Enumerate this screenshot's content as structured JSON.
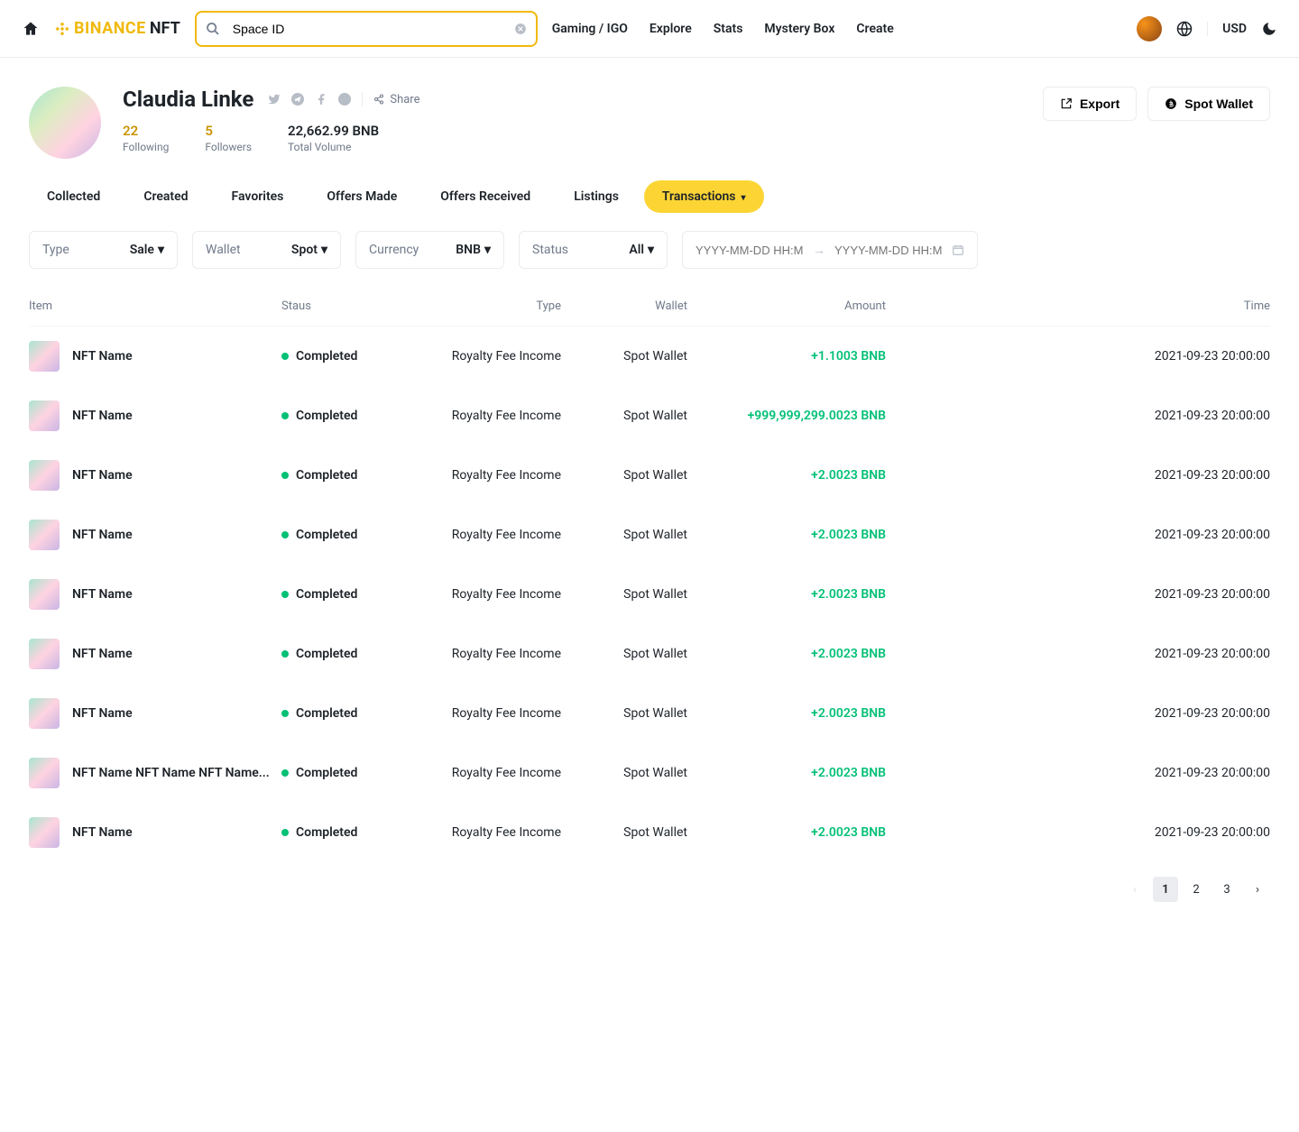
{
  "header": {
    "logo_binance": "BINANCE",
    "logo_nft": "NFT",
    "search_value": "Space ID",
    "nav": [
      "Gaming / IGO",
      "Explore",
      "Stats",
      "Mystery Box",
      "Create"
    ],
    "currency": "USD"
  },
  "profile": {
    "name": "Claudia Linke",
    "share_label": "Share",
    "stats": [
      {
        "value": "22",
        "label": "Following",
        "gold": true
      },
      {
        "value": "5",
        "label": "Followers",
        "gold": true
      },
      {
        "value": "22,662.99 BNB",
        "label": "Total Volume",
        "gold": false
      }
    ],
    "export_label": "Export",
    "spot_wallet_label": "Spot Wallet"
  },
  "tabs": [
    "Collected",
    "Created",
    "Favorites",
    "Offers Made",
    "Offers Received",
    "Listings",
    "Transactions"
  ],
  "active_tab": "Transactions",
  "filters": {
    "type": {
      "label": "Type",
      "value": "Sale"
    },
    "wallet": {
      "label": "Wallet",
      "value": "Spot"
    },
    "currency": {
      "label": "Currency",
      "value": "BNB"
    },
    "status": {
      "label": "Status",
      "value": "All"
    },
    "date_placeholder": "YYYY-MM-DD HH:MM"
  },
  "table": {
    "columns": [
      "Item",
      "Staus",
      "Type",
      "Wallet",
      "Amount",
      "Time"
    ],
    "rows": [
      {
        "item": "NFT Name",
        "status": "Completed",
        "type": "Royalty Fee Income",
        "wallet": "Spot Wallet",
        "amount": "+1.1003 BNB",
        "time": "2021-09-23 20:00:00"
      },
      {
        "item": "NFT Name",
        "status": "Completed",
        "type": "Royalty Fee Income",
        "wallet": "Spot Wallet",
        "amount": "+999,999,299.0023 BNB",
        "time": "2021-09-23 20:00:00"
      },
      {
        "item": "NFT Name",
        "status": "Completed",
        "type": "Royalty Fee Income",
        "wallet": "Spot Wallet",
        "amount": "+2.0023 BNB",
        "time": "2021-09-23 20:00:00"
      },
      {
        "item": "NFT Name",
        "status": "Completed",
        "type": "Royalty Fee Income",
        "wallet": "Spot Wallet",
        "amount": "+2.0023 BNB",
        "time": "2021-09-23 20:00:00"
      },
      {
        "item": "NFT Name",
        "status": "Completed",
        "type": "Royalty Fee Income",
        "wallet": "Spot Wallet",
        "amount": "+2.0023 BNB",
        "time": "2021-09-23 20:00:00"
      },
      {
        "item": "NFT Name",
        "status": "Completed",
        "type": "Royalty Fee Income",
        "wallet": "Spot Wallet",
        "amount": "+2.0023 BNB",
        "time": "2021-09-23 20:00:00"
      },
      {
        "item": "NFT Name",
        "status": "Completed",
        "type": "Royalty Fee Income",
        "wallet": "Spot Wallet",
        "amount": "+2.0023 BNB",
        "time": "2021-09-23 20:00:00"
      },
      {
        "item": "NFT Name NFT Name NFT Name...",
        "status": "Completed",
        "type": "Royalty Fee Income",
        "wallet": "Spot Wallet",
        "amount": "+2.0023 BNB",
        "time": "2021-09-23 20:00:00"
      },
      {
        "item": "NFT Name",
        "status": "Completed",
        "type": "Royalty Fee Income",
        "wallet": "Spot Wallet",
        "amount": "+2.0023 BNB",
        "time": "2021-09-23 20:00:00"
      }
    ]
  },
  "pagination": {
    "pages": [
      "1",
      "2",
      "3"
    ],
    "current": "1"
  },
  "colors": {
    "primary_yellow": "#fcd535",
    "border_yellow": "#f0b90b",
    "green": "#02c076",
    "gold_text": "#c99400",
    "text_secondary": "#707a8a",
    "border": "#eaecef"
  }
}
